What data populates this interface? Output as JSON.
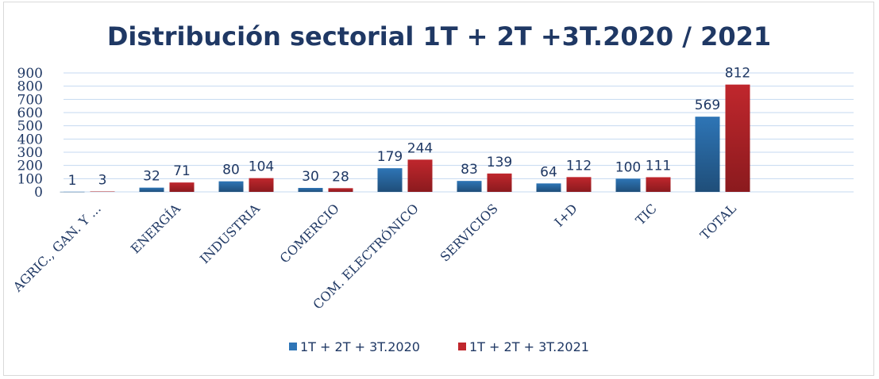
{
  "chart_data": {
    "type": "bar",
    "title": "Distribución sectorial 1T + 2T +3T.2020  / 2021",
    "categories": [
      "AGRIC., GAN. Y ...",
      "ENERGÍA",
      "INDUSTRIA",
      "COMERCIO",
      "COM. ELECTRÓNICO",
      "SERVICIOS",
      "I+D",
      "TIC",
      "TOTAL"
    ],
    "series": [
      {
        "name": "1T + 2T + 3T.2020",
        "values": [
          1,
          32,
          80,
          30,
          179,
          83,
          64,
          100,
          569
        ],
        "color": "#2e75b6"
      },
      {
        "name": "1T + 2T + 3T.2021",
        "values": [
          3,
          71,
          104,
          28,
          244,
          139,
          112,
          111,
          812
        ],
        "color": "#c0272d"
      }
    ],
    "ylim": [
      0,
      900
    ],
    "yticks": [
      0,
      100,
      200,
      300,
      400,
      500,
      600,
      700,
      800,
      900
    ],
    "grid": true,
    "legend": "bottom",
    "xlabel": "",
    "ylabel": ""
  }
}
